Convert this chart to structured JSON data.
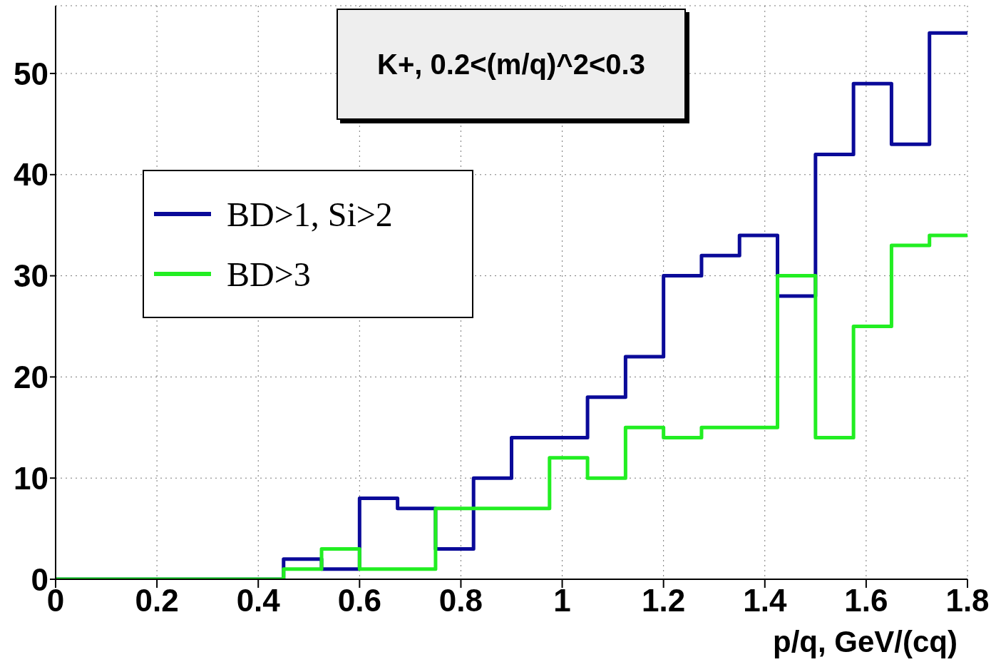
{
  "chart_data": {
    "type": "histogram",
    "title": "K+, 0.2<(m/q)^2<0.3",
    "xlabel": "p/q, GeV/(cq)",
    "bins": [
      0,
      0.075,
      0.15,
      0.225,
      0.3,
      0.375,
      0.45,
      0.525,
      0.6,
      0.675,
      0.75,
      0.825,
      0.9,
      0.975,
      1.05,
      1.125,
      1.2,
      1.275,
      1.35,
      1.425,
      1.5,
      1.575,
      1.65,
      1.725,
      1.8
    ],
    "series": [
      {
        "name": "BD>1, Si>2",
        "color": "#0a0a99",
        "values": [
          0,
          0,
          0,
          0,
          0,
          0,
          2,
          1,
          8,
          7,
          3,
          10,
          14,
          14,
          18,
          22,
          30,
          32,
          34,
          28,
          42,
          49,
          43,
          54
        ]
      },
      {
        "name": "BD>3",
        "color": "#22ee22",
        "values": [
          0,
          0,
          0,
          0,
          0,
          0,
          1,
          3,
          1,
          1,
          7,
          7,
          7,
          12,
          10,
          15,
          14,
          15,
          15,
          30,
          14,
          25,
          33,
          34
        ]
      }
    ],
    "xlim": [
      0,
      1.8
    ],
    "xticks": [
      0,
      0.2,
      0.4,
      0.6,
      0.8,
      1,
      1.2,
      1.4,
      1.6,
      1.8
    ],
    "ylim": [
      0,
      56.7
    ],
    "yticks": [
      0,
      10,
      20,
      30,
      40,
      50
    ],
    "grid": true,
    "legend": "top left"
  }
}
